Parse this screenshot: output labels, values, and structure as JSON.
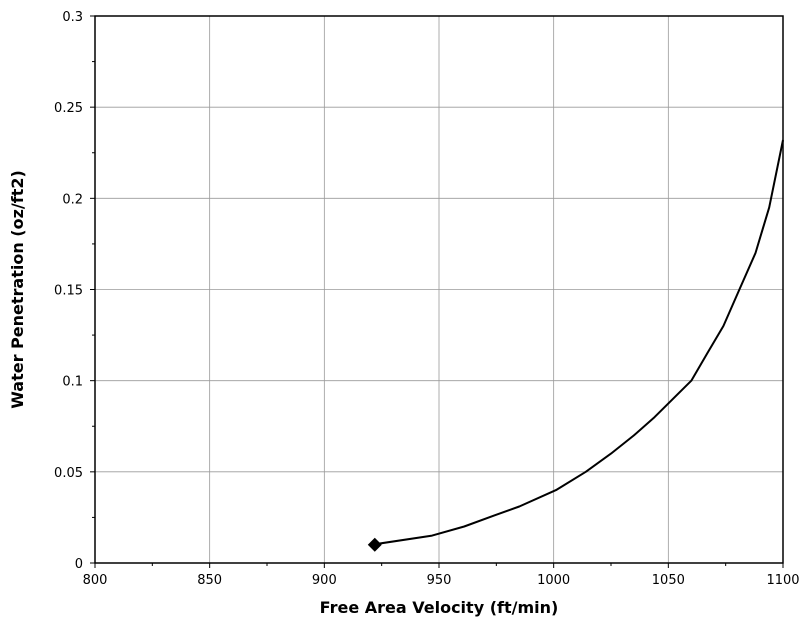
{
  "chart_data": {
    "type": "line",
    "title": "",
    "xlabel": "Free Area Velocity (ft/min)",
    "ylabel": "Water Penetration (oz/ft2)",
    "xlim": [
      800,
      1100
    ],
    "ylim": [
      0,
      0.3
    ],
    "x_ticks": [
      800,
      850,
      900,
      950,
      1000,
      1050,
      1100
    ],
    "y_ticks": [
      0,
      0.05,
      0.1,
      0.15,
      0.2,
      0.25,
      0.3
    ],
    "x_tick_labels": [
      "800",
      "850",
      "900",
      "950",
      "1000",
      "1050",
      "1100"
    ],
    "y_tick_labels": [
      "0",
      "0.05",
      "0.1",
      "0.15",
      "0.2",
      "0.25",
      "0.3"
    ],
    "grid": true,
    "legend": "none",
    "series": [
      {
        "x": [
          923,
          947,
          961,
          974,
          985,
          1001,
          1014,
          1025,
          1035,
          1044,
          1052,
          1060,
          1067,
          1074,
          1081,
          1088,
          1094,
          1100
        ],
        "y": [
          0.0105,
          0.015,
          0.02,
          0.026,
          0.031,
          0.04,
          0.05,
          0.06,
          0.07,
          0.08,
          0.09,
          0.1,
          0.115,
          0.13,
          0.15,
          0.17,
          0.195,
          0.232
        ],
        "color": "#000000"
      }
    ],
    "markers": [
      {
        "x": 922,
        "y": 0.01,
        "shape": "diamond",
        "color": "#000000"
      }
    ]
  }
}
